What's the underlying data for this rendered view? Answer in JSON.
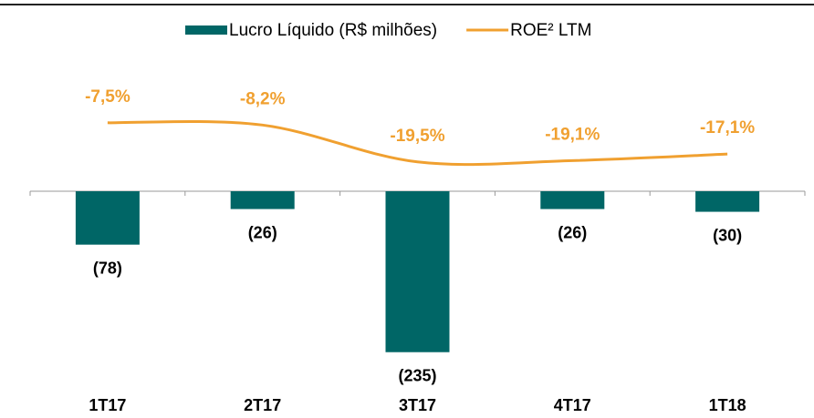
{
  "chart_data": {
    "type": "bar_line",
    "categories": [
      "1T17",
      "2T17",
      "3T17",
      "4T17",
      "1T18"
    ],
    "series": [
      {
        "name": "Lucro Líquido (R$ milhões)",
        "type": "bar",
        "color": "#006666",
        "values": [
          -78,
          -26,
          -235,
          -26,
          -30
        ],
        "value_labels": [
          "(78)",
          "(26)",
          "(235)",
          "(26)",
          "(30)"
        ]
      },
      {
        "name": "ROE² LTM",
        "type": "line",
        "axis": "y2",
        "color": "#f0a030",
        "values": [
          -7.5,
          -8.2,
          -19.5,
          -19.1,
          -17.1
        ],
        "value_labels": [
          "-7,5%",
          "-8,2%",
          "-19,5%",
          "-19,1%",
          "-17,1%"
        ]
      }
    ],
    "ylim": [
      -250,
      250
    ],
    "y2lim": [
      -81,
      24
    ],
    "legend": "top"
  }
}
